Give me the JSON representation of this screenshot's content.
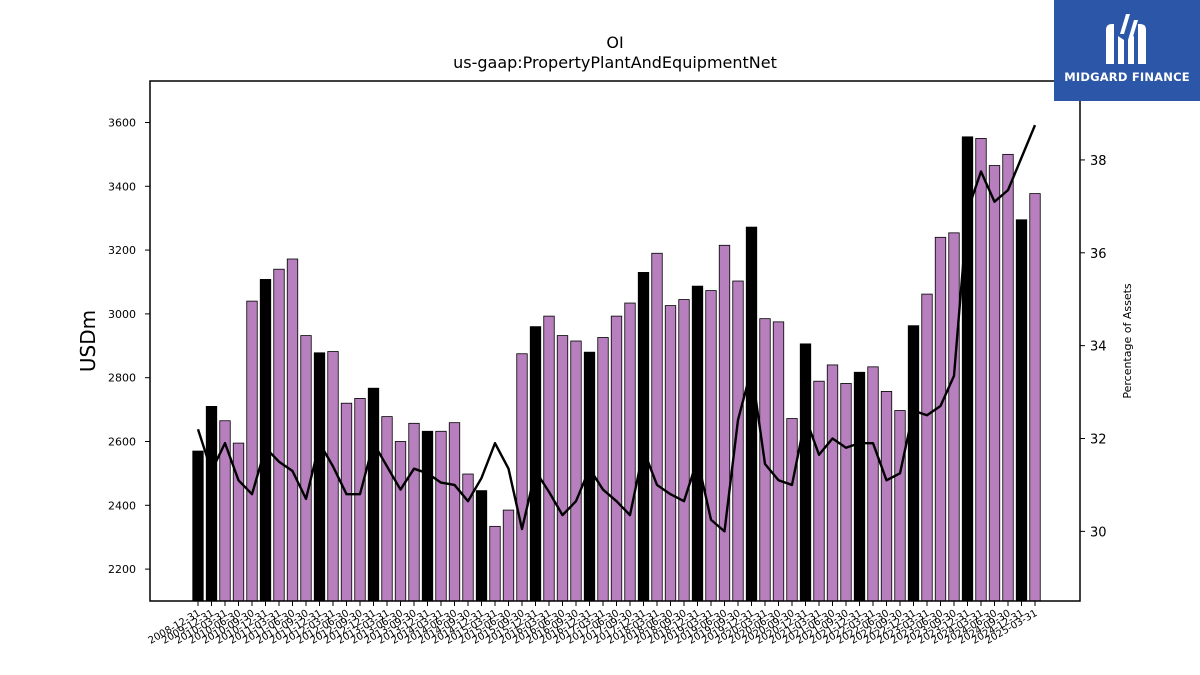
{
  "brand": {
    "name": "MIDGARD FINANCE",
    "bg_color": "#2c56a8"
  },
  "chart_data": {
    "type": "bar",
    "title": "OI",
    "subtitle": "us-gaap:PropertyPlantAndEquipmentNet",
    "ylabel": "USDm",
    "y2label": "Percentage of Assets",
    "ylim": [
      2100,
      3730
    ],
    "y2lim": [
      28.5,
      39.7
    ],
    "yticks": [
      2200,
      2400,
      2600,
      2800,
      3000,
      3200,
      3400,
      3600
    ],
    "y2ticks": [
      30,
      32,
      34,
      36,
      38
    ],
    "colors": {
      "annual_bar": "#000000",
      "quarter_bar": "#b77fbd",
      "line": "#000000"
    },
    "categories": [
      "2008-12-31",
      "2009-12-31",
      "2010-03-31",
      "2010-06-30",
      "2010-09-30",
      "2010-12-31",
      "2011-03-31",
      "2011-06-30",
      "2011-09-30",
      "2011-12-31",
      "2012-03-31",
      "2012-06-30",
      "2012-09-30",
      "2012-12-31",
      "2013-03-31",
      "2013-06-30",
      "2013-09-30",
      "2013-12-31",
      "2014-03-31",
      "2014-06-30",
      "2014-09-30",
      "2014-12-31",
      "2015-03-31",
      "2015-06-30",
      "2015-09-30",
      "2015-12-31",
      "2016-03-31",
      "2016-06-30",
      "2016-09-30",
      "2016-12-31",
      "2017-03-31",
      "2017-06-30",
      "2017-09-30",
      "2017-12-31",
      "2018-03-31",
      "2018-06-30",
      "2018-09-30",
      "2018-12-31",
      "2019-03-31",
      "2019-06-30",
      "2019-09-30",
      "2019-12-31",
      "2020-03-31",
      "2020-06-30",
      "2020-09-30",
      "2020-12-31",
      "2021-03-31",
      "2021-06-30",
      "2021-09-30",
      "2021-12-31",
      "2022-03-31",
      "2022-06-30",
      "2022-09-30",
      "2022-12-31",
      "2023-03-31",
      "2023-06-30",
      "2023-09-30",
      "2023-12-31",
      "2024-03-31",
      "2024-06-30",
      "2024-09-30",
      "2024-12-31",
      "2025-03-31"
    ],
    "series": [
      {
        "kind": "bar",
        "values": [
          2570,
          2710,
          2665,
          2595,
          3040,
          3108,
          3140,
          3172,
          2932,
          2878,
          2882,
          2720,
          2735,
          2767,
          2678,
          2600,
          2657,
          2632,
          2632,
          2659,
          2498,
          2446,
          2334,
          2385,
          2875,
          2960,
          2993,
          2932,
          2915,
          2880,
          2926,
          2993,
          3034,
          3130,
          3190,
          3026,
          3045,
          3087,
          3073,
          3215,
          3103,
          3272,
          2985,
          2975,
          2672,
          2906,
          2789,
          2840,
          2782,
          2817,
          2834,
          2757,
          2697,
          2963,
          3062,
          3240,
          3254,
          3555,
          3550,
          3465,
          3500,
          3295,
          3377
        ],
        "annual": [
          true,
          true,
          false,
          false,
          false,
          true,
          false,
          false,
          false,
          true,
          false,
          false,
          false,
          true,
          false,
          false,
          false,
          true,
          false,
          false,
          false,
          true,
          false,
          false,
          false,
          true,
          false,
          false,
          false,
          true,
          false,
          false,
          false,
          true,
          false,
          false,
          false,
          true,
          false,
          false,
          false,
          true,
          false,
          false,
          false,
          true,
          false,
          false,
          false,
          true,
          false,
          false,
          false,
          true,
          false,
          false,
          false,
          true,
          false,
          false,
          false,
          true,
          false
        ]
      },
      {
        "kind": "line",
        "axis": "right",
        "values": [
          32.2,
          31.3,
          31.9,
          31.1,
          30.8,
          31.8,
          31.5,
          31.3,
          30.7,
          31.9,
          31.4,
          30.8,
          30.8,
          31.9,
          31.4,
          30.9,
          31.35,
          31.25,
          31.05,
          31.0,
          30.65,
          31.15,
          31.9,
          31.35,
          30.05,
          31.3,
          30.85,
          30.35,
          30.65,
          31.35,
          30.9,
          30.65,
          30.35,
          31.75,
          31.0,
          30.8,
          30.65,
          31.55,
          30.25,
          30.0,
          32.4,
          33.5,
          31.45,
          31.1,
          31.0,
          32.45,
          31.65,
          32.0,
          31.8,
          31.9,
          31.9,
          31.1,
          31.25,
          32.6,
          32.5,
          32.7,
          33.35,
          36.9,
          37.75,
          37.1,
          37.35,
          38.05,
          38.75
        ]
      }
    ]
  }
}
